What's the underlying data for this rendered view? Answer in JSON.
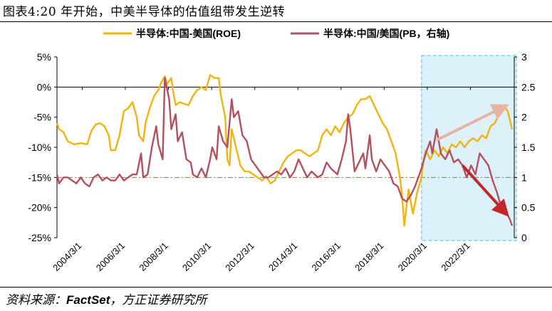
{
  "title": "图表4:20 年开始，中美半导体的估值组带发生逆转",
  "source": {
    "prefix": "资料来源：",
    "brand": "FactSet",
    "suffix": "，方正证券研究所"
  },
  "chart_data": {
    "type": "line",
    "legend": [
      {
        "name": "半导体:中国-美国(ROE)",
        "color": "#f2b30d",
        "axis": "left"
      },
      {
        "name": "半导体:中国/美国(PB，右轴)",
        "color": "#b4505e",
        "axis": "right"
      }
    ],
    "x_tick_labels": [
      "2004/3/1",
      "2006/3/1",
      "2008/3/1",
      "2010/3/1",
      "2012/3/1",
      "2014/3/1",
      "2016/3/1",
      "2018/3/1",
      "2020/3/1",
      "2022/3/1"
    ],
    "y_left": {
      "ticks": [
        "5%",
        "0%",
        "-5%",
        "-10%",
        "-15%",
        "-20%",
        "-25%"
      ],
      "range": [
        -25,
        5
      ]
    },
    "y_right": {
      "ticks": [
        "3",
        "2.5",
        "2",
        "1.5",
        "1",
        "0.5",
        "0"
      ],
      "range": [
        0,
        3
      ]
    },
    "reference_line": {
      "axis": "right",
      "value": 1,
      "color": "#e0504a"
    },
    "highlight_region": {
      "x_start": 2020.0,
      "x_end": 2024.2,
      "fill": "#dcf1fa",
      "stroke": "#45bfe5"
    },
    "arrows": [
      {
        "from": [
          2020.6,
          1.62
        ],
        "to": [
          2023.6,
          2.15
        ],
        "color": "#e8b3a0"
      },
      {
        "from": [
          2021.8,
          1.2
        ],
        "to": [
          2023.7,
          0.45
        ],
        "color": "#c0282c"
      }
    ],
    "series": [
      {
        "name": "半导体:中国-美国(ROE)",
        "axis": "left",
        "color": "#f2b30d",
        "points": [
          [
            2003.0,
            -6
          ],
          [
            2003.1,
            -7
          ],
          [
            2003.3,
            -7.5
          ],
          [
            2003.5,
            -9
          ],
          [
            2003.8,
            -9.5
          ],
          [
            2004.1,
            -9.3
          ],
          [
            2004.4,
            -9.5
          ],
          [
            2004.6,
            -7.2
          ],
          [
            2004.8,
            -6.2
          ],
          [
            2005.0,
            -6
          ],
          [
            2005.2,
            -6.5
          ],
          [
            2005.4,
            -8
          ],
          [
            2005.5,
            -10.5
          ],
          [
            2005.7,
            -10.5
          ],
          [
            2005.9,
            -8
          ],
          [
            2006.1,
            -4
          ],
          [
            2006.3,
            -3.5
          ],
          [
            2006.5,
            -2.5
          ],
          [
            2006.7,
            -5
          ],
          [
            2006.8,
            -8
          ],
          [
            2007.0,
            -9
          ],
          [
            2007.1,
            -6
          ],
          [
            2007.3,
            -3.5
          ],
          [
            2007.5,
            -1.5
          ],
          [
            2007.7,
            -0.5
          ],
          [
            2007.8,
            0.5
          ],
          [
            2008.0,
            1.8
          ],
          [
            2008.1,
            0.5
          ],
          [
            2008.3,
            1.5
          ],
          [
            2008.4,
            -1
          ],
          [
            2008.5,
            -3
          ],
          [
            2008.7,
            -2.5
          ],
          [
            2008.9,
            -2.8
          ],
          [
            2009.1,
            -3
          ],
          [
            2009.3,
            -1.5
          ],
          [
            2009.5,
            -0.5
          ],
          [
            2009.7,
            0
          ],
          [
            2009.9,
            -0.5
          ],
          [
            2010.1,
            2
          ],
          [
            2010.3,
            1.5
          ],
          [
            2010.5,
            1.5
          ],
          [
            2010.6,
            -1.5
          ],
          [
            2010.8,
            -5
          ],
          [
            2010.9,
            -12
          ],
          [
            2011.0,
            -13
          ],
          [
            2011.1,
            -7
          ],
          [
            2011.3,
            -10
          ],
          [
            2011.5,
            -13
          ],
          [
            2011.7,
            -14
          ],
          [
            2011.9,
            -14
          ],
          [
            2012.1,
            -14.5
          ],
          [
            2012.3,
            -15
          ],
          [
            2012.5,
            -15.5
          ],
          [
            2012.7,
            -14.8
          ],
          [
            2012.9,
            -16
          ],
          [
            2013.1,
            -15.5
          ],
          [
            2013.3,
            -14
          ],
          [
            2013.5,
            -12.5
          ],
          [
            2013.7,
            -11.5
          ],
          [
            2013.9,
            -11
          ],
          [
            2014.1,
            -10.5
          ],
          [
            2014.3,
            -10.5
          ],
          [
            2014.5,
            -11
          ],
          [
            2014.7,
            -11.5
          ],
          [
            2014.9,
            -11
          ],
          [
            2015.1,
            -10.5
          ],
          [
            2015.3,
            -8
          ],
          [
            2015.5,
            -7
          ],
          [
            2015.7,
            -8
          ],
          [
            2015.9,
            -6.5
          ],
          [
            2016.1,
            -7.5
          ],
          [
            2016.3,
            -6
          ],
          [
            2016.5,
            -5
          ],
          [
            2016.7,
            -4.5
          ],
          [
            2016.9,
            -3
          ],
          [
            2017.1,
            -2
          ],
          [
            2017.3,
            -2
          ],
          [
            2017.5,
            -1.5
          ],
          [
            2017.7,
            -3
          ],
          [
            2017.9,
            -4.5
          ],
          [
            2018.1,
            -6
          ],
          [
            2018.3,
            -7
          ],
          [
            2018.5,
            -9
          ],
          [
            2018.7,
            -11
          ],
          [
            2018.9,
            -15
          ],
          [
            2019.0,
            -18
          ],
          [
            2019.1,
            -23
          ],
          [
            2019.2,
            -20
          ],
          [
            2019.3,
            -17
          ],
          [
            2019.5,
            -21
          ],
          [
            2019.7,
            -17.5
          ],
          [
            2019.9,
            -15
          ],
          [
            2020.0,
            -12
          ],
          [
            2020.1,
            -10.5
          ],
          [
            2020.3,
            -12
          ],
          [
            2020.5,
            -10.5
          ],
          [
            2020.7,
            -11.5
          ],
          [
            2020.9,
            -10
          ],
          [
            2021.1,
            -11
          ],
          [
            2021.3,
            -9.5
          ],
          [
            2021.5,
            -10
          ],
          [
            2021.7,
            -9
          ],
          [
            2021.9,
            -10
          ],
          [
            2022.1,
            -9
          ],
          [
            2022.3,
            -8.5
          ],
          [
            2022.5,
            -9
          ],
          [
            2022.7,
            -8
          ],
          [
            2022.9,
            -8.5
          ],
          [
            2023.1,
            -6.5
          ],
          [
            2023.3,
            -6
          ],
          [
            2023.5,
            -4.5
          ],
          [
            2023.7,
            -3
          ],
          [
            2023.9,
            -4
          ],
          [
            2024.0,
            -5.5
          ],
          [
            2024.1,
            -7
          ]
        ]
      },
      {
        "name": "半导体:中国/美国(PB，右轴)",
        "axis": "right",
        "color": "#b4505e",
        "points": [
          [
            2003.0,
            1.05
          ],
          [
            2003.1,
            0.9
          ],
          [
            2003.3,
            1.0
          ],
          [
            2003.5,
            1.0
          ],
          [
            2003.7,
            0.95
          ],
          [
            2003.9,
            0.9
          ],
          [
            2004.1,
            1.0
          ],
          [
            2004.3,
            0.9
          ],
          [
            2004.5,
            0.85
          ],
          [
            2004.7,
            1.0
          ],
          [
            2004.9,
            1.05
          ],
          [
            2005.1,
            0.95
          ],
          [
            2005.3,
            1.0
          ],
          [
            2005.5,
            0.95
          ],
          [
            2005.7,
            0.95
          ],
          [
            2005.9,
            1.05
          ],
          [
            2006.1,
            0.95
          ],
          [
            2006.3,
            1.0
          ],
          [
            2006.5,
            1.05
          ],
          [
            2006.7,
            1.05
          ],
          [
            2006.9,
            1.4
          ],
          [
            2007.0,
            1.0
          ],
          [
            2007.2,
            1.05
          ],
          [
            2007.4,
            1.5
          ],
          [
            2007.6,
            1.85
          ],
          [
            2007.7,
            1.55
          ],
          [
            2007.9,
            1.3
          ],
          [
            2008.0,
            2.65
          ],
          [
            2008.2,
            2.3
          ],
          [
            2008.3,
            1.8
          ],
          [
            2008.5,
            2.05
          ],
          [
            2008.6,
            1.6
          ],
          [
            2008.8,
            1.75
          ],
          [
            2009.0,
            1.3
          ],
          [
            2009.2,
            1.25
          ],
          [
            2009.3,
            1.05
          ],
          [
            2009.5,
            1.0
          ],
          [
            2009.7,
            1.15
          ],
          [
            2009.9,
            1.0
          ],
          [
            2010.1,
            1.3
          ],
          [
            2010.2,
            1.5
          ],
          [
            2010.4,
            1.3
          ],
          [
            2010.5,
            1.85
          ],
          [
            2010.7,
            1.6
          ],
          [
            2010.9,
            1.5
          ],
          [
            2011.1,
            2.3
          ],
          [
            2011.2,
            2.0
          ],
          [
            2011.4,
            2.1
          ],
          [
            2011.6,
            1.7
          ],
          [
            2011.8,
            1.6
          ],
          [
            2012.0,
            1.3
          ],
          [
            2012.2,
            1.2
          ],
          [
            2012.4,
            1.1
          ],
          [
            2012.6,
            1.0
          ],
          [
            2012.8,
            1.0
          ],
          [
            2013.0,
            1.05
          ],
          [
            2013.2,
            1.1
          ],
          [
            2013.4,
            1.05
          ],
          [
            2013.6,
            1.15
          ],
          [
            2013.8,
            1.0
          ],
          [
            2014.0,
            1.1
          ],
          [
            2014.2,
            1.3
          ],
          [
            2014.4,
            1.15
          ],
          [
            2014.6,
            1.0
          ],
          [
            2014.8,
            1.1
          ],
          [
            2015.1,
            1.0
          ],
          [
            2015.3,
            1.05
          ],
          [
            2015.5,
            1.25
          ],
          [
            2015.7,
            1.15
          ],
          [
            2016.0,
            1.05
          ],
          [
            2016.2,
            1.3
          ],
          [
            2016.4,
            1.6
          ],
          [
            2016.5,
            2.05
          ],
          [
            2016.6,
            1.8
          ],
          [
            2016.8,
            1.1
          ],
          [
            2017.0,
            1.25
          ],
          [
            2017.2,
            1.4
          ],
          [
            2017.3,
            1.15
          ],
          [
            2017.5,
            1.7
          ],
          [
            2017.6,
            1.3
          ],
          [
            2017.8,
            1.1
          ],
          [
            2018.0,
            1.3
          ],
          [
            2018.2,
            1.2
          ],
          [
            2018.4,
            1.1
          ],
          [
            2018.6,
            0.9
          ],
          [
            2018.8,
            0.85
          ],
          [
            2019.0,
            0.65
          ],
          [
            2019.2,
            0.6
          ],
          [
            2019.4,
            0.7
          ],
          [
            2019.6,
            0.85
          ],
          [
            2019.8,
            1.05
          ],
          [
            2019.9,
            1.15
          ],
          [
            2020.1,
            1.4
          ],
          [
            2020.3,
            1.6
          ],
          [
            2020.4,
            1.4
          ],
          [
            2020.6,
            1.8
          ],
          [
            2020.8,
            1.4
          ],
          [
            2021.0,
            1.3
          ],
          [
            2021.2,
            1.45
          ],
          [
            2021.4,
            1.25
          ],
          [
            2021.6,
            1.3
          ],
          [
            2021.8,
            1.2
          ],
          [
            2022.0,
            1.0
          ],
          [
            2022.2,
            1.2
          ],
          [
            2022.4,
            1.05
          ],
          [
            2022.6,
            1.4
          ],
          [
            2022.8,
            1.3
          ],
          [
            2023.0,
            1.2
          ],
          [
            2023.2,
            0.95
          ],
          [
            2023.4,
            0.75
          ],
          [
            2023.6,
            0.5
          ],
          [
            2023.8,
            0.45
          ],
          [
            2024.0,
            0.3
          ],
          [
            2024.1,
            0.2
          ]
        ]
      }
    ]
  }
}
